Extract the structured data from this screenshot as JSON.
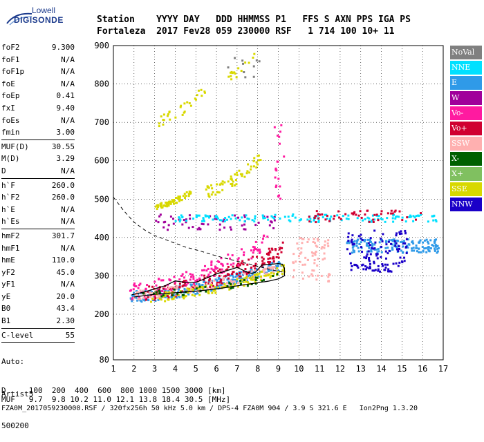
{
  "logo": {
    "line1": "Lowell",
    "line2": "DIGISONDE"
  },
  "header": {
    "line1": "Station    YYYY DAY   DDD HHMMSS P1   FFS S AXN PPS IGA PS",
    "line2": "Fortaleza  2017 Fev28 059 230000 RSF   1 714 100 10+ 11"
  },
  "params": [
    [
      {
        "k": "foF2",
        "v": "9.300"
      },
      {
        "k": "foF1",
        "v": "N/A"
      },
      {
        "k": "foF1p",
        "v": "N/A"
      },
      {
        "k": "foE",
        "v": "N/A"
      },
      {
        "k": "foEp",
        "v": "0.41"
      },
      {
        "k": "fxI",
        "v": "9.40"
      },
      {
        "k": "foEs",
        "v": "N/A"
      },
      {
        "k": "fmin",
        "v": "3.00"
      }
    ],
    [
      {
        "k": "MUF(D)",
        "v": "30.55"
      },
      {
        "k": "M(D)",
        "v": "3.29"
      },
      {
        "k": "D",
        "v": "N/A"
      }
    ],
    [
      {
        "k": "h`F",
        "v": "260.0"
      },
      {
        "k": "h`F2",
        "v": "260.0"
      },
      {
        "k": "h`E",
        "v": "N/A"
      },
      {
        "k": "h`Es",
        "v": "N/A"
      }
    ],
    [
      {
        "k": "hmF2",
        "v": "301.7"
      },
      {
        "k": "hmF1",
        "v": "N/A"
      },
      {
        "k": "hmE",
        "v": "110.0"
      },
      {
        "k": "yF2",
        "v": "45.0"
      },
      {
        "k": "yF1",
        "v": "N/A"
      },
      {
        "k": "yE",
        "v": "20.0"
      },
      {
        "k": "B0",
        "v": "43.4"
      },
      {
        "k": "B1",
        "v": "2.30"
      }
    ],
    [
      {
        "k": "C-level",
        "v": "55"
      }
    ]
  ],
  "autoscaling": [
    "Auto:",
    "Artist5",
    "500200"
  ],
  "legend": [
    {
      "label": "NoVal",
      "color": "#808080"
    },
    {
      "label": "NNE",
      "color": "#00e0ff"
    },
    {
      "label": "E",
      "color": "#2f9ae8"
    },
    {
      "label": "W",
      "color": "#a0009a"
    },
    {
      "label": "Vo-",
      "color": "#ff1aa0"
    },
    {
      "label": "Vo+",
      "color": "#d00030"
    },
    {
      "label": "SSW",
      "color": "#ffb0b0"
    },
    {
      "label": "X-",
      "color": "#006000"
    },
    {
      "label": "X+",
      "color": "#80c060"
    },
    {
      "label": "SSE",
      "color": "#d8d800"
    },
    {
      "label": "NNW",
      "color": "#1a00c8"
    }
  ],
  "chart_data": {
    "type": "scatter",
    "xlim": [
      1,
      17
    ],
    "ylim": [
      80,
      900
    ],
    "xticks": [
      1,
      2,
      3,
      4,
      5,
      6,
      7,
      8,
      9,
      10,
      11,
      12,
      13,
      14,
      15,
      16,
      17
    ],
    "yticks": [
      80,
      200,
      300,
      400,
      500,
      600,
      700,
      800,
      900
    ],
    "grid": true,
    "clusters": [
      {
        "color": "#2f9ae8",
        "x": [
          1.8,
          9.2
        ],
        "y": [
          245,
          330
        ],
        "n": 260,
        "trend": "rising"
      },
      {
        "color": "#d00030",
        "x": [
          2.5,
          9.3
        ],
        "y": [
          255,
          370
        ],
        "n": 170,
        "trend": "rising"
      },
      {
        "color": "#ff1aa0",
        "x": [
          1.8,
          8.5
        ],
        "y": [
          260,
          390
        ],
        "n": 120,
        "trend": "rising"
      },
      {
        "color": "#ffb0b0",
        "x": [
          1.9,
          9.0
        ],
        "y": [
          250,
          320
        ],
        "n": 120,
        "trend": "rising"
      },
      {
        "color": "#d8d800",
        "x": [
          2.8,
          9.3
        ],
        "y": [
          245,
          320
        ],
        "n": 120,
        "trend": "rising"
      },
      {
        "color": "#006000",
        "x": [
          2.0,
          9.2
        ],
        "y": [
          250,
          300
        ],
        "n": 40,
        "trend": "rising"
      },
      {
        "color": "#a0009a",
        "x": [
          3.0,
          9.0
        ],
        "y": [
          420,
          460
        ],
        "n": 60,
        "trend": "flat"
      },
      {
        "color": "#00e0ff",
        "x": [
          4.0,
          16.8
        ],
        "y": [
          440,
          460
        ],
        "n": 140,
        "trend": "flat"
      },
      {
        "color": "#d00030",
        "x": [
          10.5,
          16.0
        ],
        "y": [
          440,
          470
        ],
        "n": 50,
        "trend": "flat"
      },
      {
        "color": "#2f9ae8",
        "x": [
          12.3,
          16.8
        ],
        "y": [
          360,
          395
        ],
        "n": 150,
        "trend": "flat"
      },
      {
        "color": "#1a00c8",
        "x": [
          12.3,
          15.3
        ],
        "y": [
          320,
          420
        ],
        "n": 90,
        "trend": "flat"
      },
      {
        "color": "#1a00c8",
        "x": [
          12.5,
          14.5
        ],
        "y": [
          310,
          330
        ],
        "n": 30,
        "trend": "flat"
      },
      {
        "color": "#ffb0b0",
        "x": [
          9.7,
          11.5
        ],
        "y": [
          285,
          400
        ],
        "n": 70,
        "trend": "flat"
      },
      {
        "color": "#d8d800",
        "x": [
          3.0,
          4.8
        ],
        "y": [
          480,
          520
        ],
        "n": 60,
        "trend": "rising"
      },
      {
        "color": "#d8d800",
        "x": [
          5.5,
          8.2
        ],
        "y": [
          520,
          610
        ],
        "n": 60,
        "trend": "rising"
      },
      {
        "color": "#d8d800",
        "x": [
          3.0,
          5.5
        ],
        "y": [
          700,
          790
        ],
        "n": 30,
        "trend": "rising"
      },
      {
        "color": "#d8d800",
        "x": [
          6.5,
          8.0
        ],
        "y": [
          815,
          890
        ],
        "n": 15,
        "trend": "rising"
      },
      {
        "color": "#ff1aa0",
        "x": [
          8.8,
          9.3
        ],
        "y": [
          500,
          700
        ],
        "n": 20,
        "trend": "flat"
      },
      {
        "color": "#808080",
        "x": [
          6.5,
          8.5
        ],
        "y": [
          800,
          870
        ],
        "n": 10,
        "trend": "flat"
      }
    ],
    "profile_solid": {
      "x": [
        2,
        3,
        4,
        5,
        6,
        7,
        8,
        8.5,
        9,
        9.3,
        9.3,
        9.2,
        9.0,
        8.6,
        8.2,
        7.9,
        7.7,
        7.4,
        7.0,
        6.0,
        5.5,
        5.0,
        4.5,
        4.0,
        3.5,
        3.0,
        2.5,
        2.0,
        1.9
      ],
      "y": [
        245,
        252,
        256,
        260,
        266,
        274,
        282,
        286,
        292,
        300,
        320,
        330,
        332,
        330,
        328,
        310,
        306,
        312,
        322,
        305,
        294,
        283,
        283,
        287,
        274,
        266,
        258,
        252,
        251
      ]
    },
    "profile_dashed": {
      "x": [
        1,
        1.5,
        2,
        2.5,
        3,
        3.5,
        4,
        4.5,
        5,
        5.5,
        6,
        6.5,
        7,
        7.5,
        8,
        8.5,
        9,
        9.2
      ],
      "y": [
        505,
        470,
        440,
        420,
        405,
        395,
        385,
        375,
        368,
        360,
        352,
        345,
        338,
        332,
        325,
        318,
        312,
        310
      ]
    },
    "scale_D": {
      "label": "D",
      "values": [
        "100",
        "200",
        "400",
        "600",
        "800",
        "1000",
        "1500",
        "3000 [km]"
      ]
    },
    "scale_MUF": {
      "label": "MUF",
      "values": [
        "9.7",
        "9.8",
        "10.2",
        "11.0",
        "12.1",
        "13.8",
        "18.4",
        "30.5 [MHz]"
      ]
    }
  },
  "footer": {
    "line_d": "D     100  200  400  600  800 1000 1500 3000 [km]",
    "line_muf": "MUF   9.7  9.8 10.2 11.0 12.1 13.8 18.4 30.5 [MHz]",
    "line_file": "FZA0M_2017059230000.RSF / 320fx256h 50 kHz 5.0 km / DPS-4 FZA0M 904 / 3.9 S 321.6 E   Ion2Png 1.3.20"
  }
}
